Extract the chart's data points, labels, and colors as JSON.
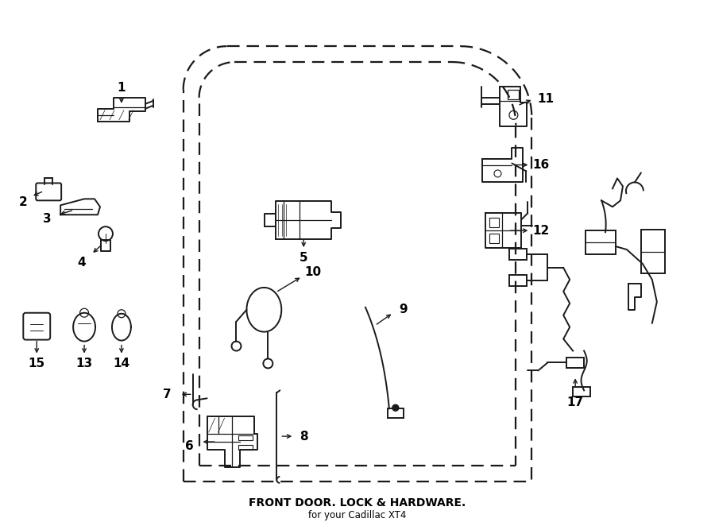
{
  "title": "FRONT DOOR. LOCK & HARDWARE.",
  "subtitle": "for your Cadillac XT4",
  "background_color": "#ffffff",
  "line_color": "#1a1a1a",
  "fig_width": 9.0,
  "fig_height": 6.62,
  "dpi": 100
}
